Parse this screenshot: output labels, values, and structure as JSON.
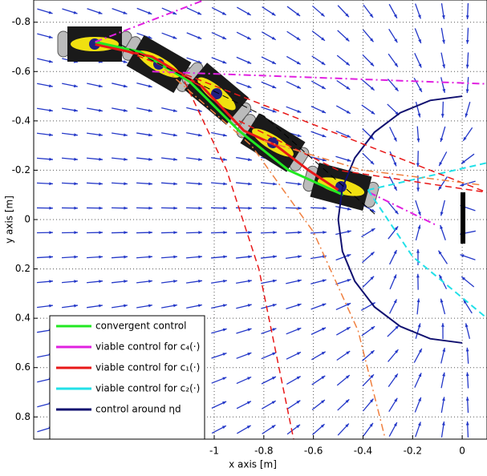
{
  "chart_data": {
    "type": "line",
    "xlabel": "x axis [m]",
    "ylabel": "y axis [m]",
    "xlim": [
      -1.728,
      0.1
    ],
    "ylim": [
      -0.89,
      0.89
    ],
    "y_reversed": true,
    "xticks": [
      -1,
      -0.8,
      -0.6,
      -0.4,
      -0.2,
      0
    ],
    "yticks": [
      -0.8,
      -0.6,
      -0.4,
      -0.2,
      0,
      0.2,
      0.4,
      0.6,
      0.8
    ],
    "grid": true,
    "legend": "lower left",
    "series": [
      {
        "name": "convergent control",
        "color": "#22e822",
        "dash": "solid",
        "width": 3,
        "x": [
          -1.48,
          -1.3,
          -1.1,
          -0.9,
          -0.7,
          -0.48
        ],
        "y": [
          -0.72,
          -0.68,
          -0.56,
          -0.36,
          -0.2,
          -0.1
        ]
      },
      {
        "name": "viable control for c₄(·)",
        "color": "#e020e0",
        "dash": "dashdot",
        "width": 2,
        "x": [
          -1.48,
          -1.04,
          null,
          -1.25,
          0.1,
          null,
          -0.375,
          -0.11
        ],
        "y": [
          -0.72,
          -0.89,
          null,
          -0.6,
          -0.55,
          null,
          -0.11,
          0.02
        ]
      },
      {
        "name": "viable control for c₁(·)",
        "color": "#e81818",
        "dash": "solid",
        "width": 3,
        "x": [
          -1.48,
          -1.25,
          -1.05,
          -0.88,
          -0.75,
          -0.62,
          -0.5
        ],
        "y": [
          -0.71,
          -0.66,
          -0.54,
          -0.36,
          -0.3,
          -0.2,
          -0.12
        ]
      },
      {
        "name": "viable control for c₂(·)",
        "color": "#22e0e8",
        "dash": "dashed",
        "width": 2,
        "x": [
          -0.38,
          0.1,
          null,
          -0.38,
          -0.2,
          0.1
        ],
        "y": [
          -0.12,
          -0.23,
          null,
          -0.12,
          0.15,
          0.4
        ]
      },
      {
        "name": "control around ηd",
        "color": "#101070",
        "dash": "solid",
        "width": 2,
        "x": [
          0,
          -0.129,
          -0.25,
          -0.354,
          -0.433,
          -0.483,
          -0.5,
          -0.483,
          -0.433,
          -0.354,
          -0.25,
          -0.129,
          0
        ],
        "y": [
          -0.5,
          -0.483,
          -0.433,
          -0.354,
          -0.25,
          -0.129,
          0,
          0.129,
          0.25,
          0.354,
          0.433,
          0.483,
          0.5
        ]
      },
      {
        "color": "#e81818",
        "dash": "dashed",
        "width": 1.5,
        "x": [
          -1.35,
          0.1,
          null,
          -1.12,
          -0.95,
          -0.82,
          -0.68,
          null,
          -0.9,
          -0.5,
          0.1
        ],
        "y": [
          -0.68,
          -0.11,
          null,
          -0.56,
          -0.2,
          0.2,
          0.89,
          null,
          -0.4,
          -0.2,
          -0.11
        ]
      },
      {
        "color": "#f08040",
        "dash": "dashdot",
        "width": 1.5,
        "x": [
          -1.2,
          -0.85,
          -0.6,
          -0.42,
          -0.31,
          null,
          -0.8,
          -0.4,
          0.08
        ],
        "y": [
          -0.61,
          -0.3,
          0.05,
          0.45,
          0.89,
          null,
          -0.32,
          -0.2,
          -0.14
        ]
      },
      {
        "color": "#000000",
        "dash": "dashed",
        "width": 1,
        "x": [
          -1.38,
          -0.8,
          -0.35
        ],
        "y": [
          -0.71,
          -0.42,
          -0.02
        ]
      }
    ]
  }
}
